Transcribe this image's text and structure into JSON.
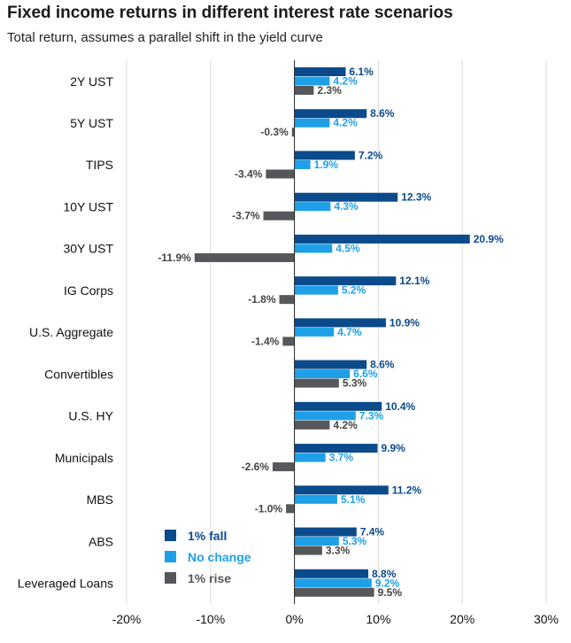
{
  "title": "Fixed income returns in different interest rate scenarios",
  "subtitle": "Total return, assumes a parallel shift in the yield curve",
  "chart_data": {
    "type": "bar",
    "orientation": "horizontal",
    "categories": [
      "2Y UST",
      "5Y UST",
      "TIPS",
      "10Y UST",
      "30Y UST",
      "IG Corps",
      "U.S. Aggregate",
      "Convertibles",
      "U.S. HY",
      "Municipals",
      "MBS",
      "ABS",
      "Leveraged Loans"
    ],
    "series": [
      {
        "name": "1% fall",
        "color": "#0b4a8b",
        "values": [
          6.1,
          8.6,
          7.2,
          12.3,
          20.9,
          12.1,
          10.9,
          8.6,
          10.4,
          9.9,
          11.2,
          7.4,
          8.8
        ],
        "labels": [
          "6.1%",
          "8.6%",
          "7.2%",
          "12.3%",
          "20.9%",
          "12.1%",
          "10.9%",
          "8.6%",
          "10.4%",
          "9.9%",
          "11.2%",
          "7.4%",
          "8.8%"
        ]
      },
      {
        "name": "No change",
        "color": "#1ea0e8",
        "values": [
          4.2,
          4.2,
          1.9,
          4.3,
          4.5,
          5.2,
          4.7,
          6.6,
          7.3,
          3.7,
          5.1,
          5.3,
          9.2
        ],
        "labels": [
          "4.2%",
          "4.2%",
          "1.9%",
          "4.3%",
          "4.5%",
          "5.2%",
          "4.7%",
          "6.6%",
          "7.3%",
          "3.7%",
          "5.1%",
          "5.3%",
          "9.2%"
        ]
      },
      {
        "name": "1% rise",
        "color": "#55575a",
        "values": [
          2.3,
          -0.3,
          -3.4,
          -3.7,
          -11.9,
          -1.8,
          -1.4,
          5.3,
          4.2,
          -2.6,
          -1.0,
          3.3,
          9.5
        ],
        "labels": [
          "2.3%",
          "-0.3%",
          "-3.4%",
          "-3.7%",
          "-11.9%",
          "-1.8%",
          "-1.4%",
          "5.3%",
          "4.2%",
          "-2.6%",
          "-1.0%",
          "3.3%",
          "9.5%"
        ]
      }
    ],
    "xlim": [
      -20,
      30
    ],
    "xticks": [
      -20,
      -10,
      0,
      10,
      20,
      30
    ],
    "xtick_labels": [
      "-20%",
      "-10%",
      "0%",
      "10%",
      "20%",
      "30%"
    ],
    "grid": "vertical",
    "legend_position": "bottom-left",
    "label_colors": [
      "#0b4a8b",
      "#1ea0e8",
      "#444444"
    ]
  }
}
